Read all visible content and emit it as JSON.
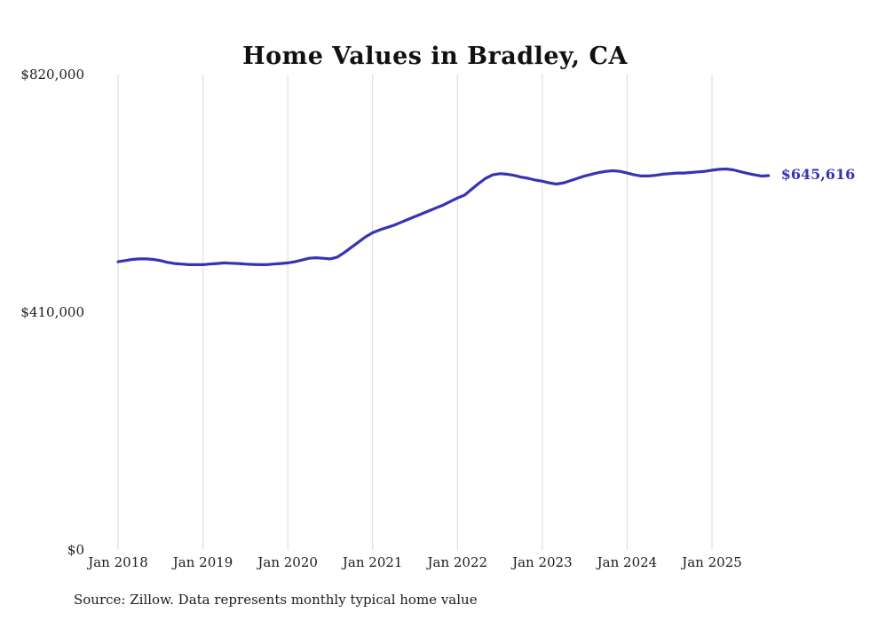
{
  "source_note": "Source: Zillow. Data represents monthly typical home value",
  "chart_data": {
    "type": "line",
    "title": "Home Values in Bradley, CA",
    "xlabel": "",
    "ylabel": "",
    "ylim": [
      0,
      820000
    ],
    "grid": "vertical",
    "legend_position": "none",
    "end_label": "$645,616",
    "start_month": "2018-01",
    "end_month": "2025-09",
    "y_ticks": [
      {
        "value": 0,
        "label": "$0"
      },
      {
        "value": 410000,
        "label": "$410,000"
      },
      {
        "value": 820000,
        "label": "$820,000"
      }
    ],
    "x_ticks": [
      {
        "label": "Jan 2018",
        "month_index": 0
      },
      {
        "label": "Jan 2019",
        "month_index": 12
      },
      {
        "label": "Jan 2020",
        "month_index": 24
      },
      {
        "label": "Jan 2021",
        "month_index": 36
      },
      {
        "label": "Jan 2022",
        "month_index": 48
      },
      {
        "label": "Jan 2023",
        "month_index": 60
      },
      {
        "label": "Jan 2024",
        "month_index": 72
      },
      {
        "label": "Jan 2025",
        "month_index": 84
      }
    ],
    "series": [
      {
        "name": "Typical home value",
        "color": "#3734b3",
        "monthly_values": [
          497000,
          499000,
          501000,
          502000,
          502000,
          501000,
          499000,
          496000,
          494000,
          493000,
          492000,
          492000,
          492000,
          493000,
          494000,
          495000,
          494500,
          494000,
          493000,
          492500,
          492000,
          492000,
          493000,
          494000,
          495000,
          497000,
          500000,
          503000,
          504000,
          503000,
          502000,
          505000,
          513000,
          522000,
          531000,
          540000,
          547000,
          552000,
          556000,
          560000,
          565000,
          570000,
          575000,
          580000,
          585000,
          590000,
          595000,
          601000,
          607000,
          612000,
          622000,
          632000,
          641000,
          647000,
          649000,
          648000,
          646000,
          643000,
          641000,
          638000,
          636000,
          633000,
          631000,
          633000,
          637000,
          641000,
          645000,
          648000,
          651000,
          653000,
          654000,
          653000,
          650000,
          647000,
          645000,
          645000,
          646000,
          648000,
          649000,
          650000,
          650000,
          651000,
          652000,
          653000,
          655000,
          656500,
          657000,
          655500,
          652500,
          649500,
          647000,
          644800,
          645616
        ]
      }
    ]
  }
}
